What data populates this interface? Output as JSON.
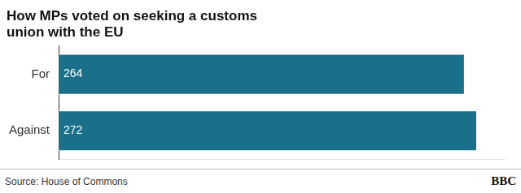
{
  "chart_data": {
    "type": "bar",
    "orientation": "horizontal",
    "title": "How MPs voted on seeking a customs\nunion with the EU",
    "categories": [
      "For",
      "Against"
    ],
    "values": [
      264,
      272
    ],
    "color": "#1a6f8a",
    "xlim": [
      0,
      290
    ],
    "tick_labels": "y",
    "grid": false,
    "data_labels": true,
    "annotations": [
      "Source: House of Commons",
      "BBC"
    ]
  }
}
